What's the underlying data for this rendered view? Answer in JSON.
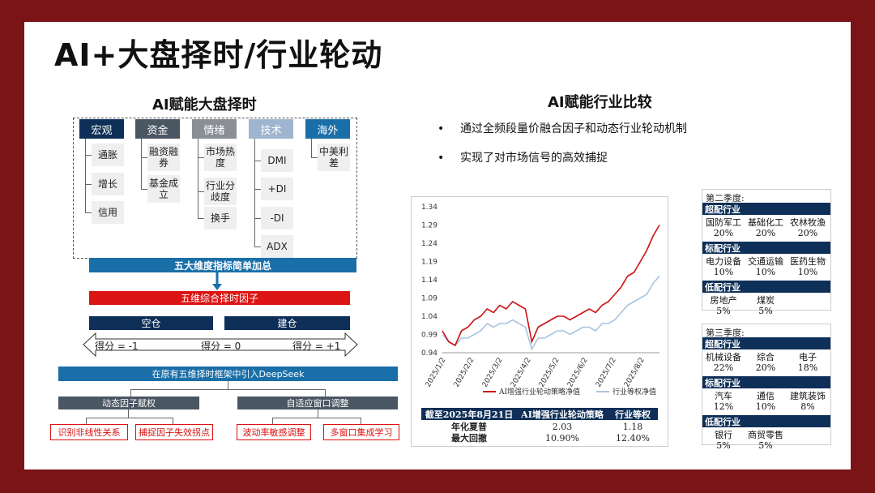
{
  "title": "AI+大盘择时/行业轮动",
  "left": {
    "subtitle": "AI赋能大盘择时",
    "dimensions": [
      {
        "name": "宏观",
        "color": "#0e2f57",
        "items": [
          "通胀",
          "增长",
          "信用"
        ]
      },
      {
        "name": "资金",
        "color": "#4b5663",
        "items": [
          "融资融券",
          "基金成立"
        ]
      },
      {
        "name": "情绪",
        "color": "#8a8f96",
        "items": [
          "市场热度",
          "行业分歧度",
          "换手"
        ]
      },
      {
        "name": "技术",
        "color": "#9fb5cf",
        "items": [
          "DMI",
          "+DI",
          "-DI",
          "ADX"
        ]
      },
      {
        "name": "海外",
        "color": "#1a6fa8",
        "items": [
          "中美利差"
        ]
      }
    ],
    "sum_bar": "五大维度指标简单加总",
    "factor_bar": "五维综合择时因子",
    "empty_label": "空仓",
    "build_label": "建仓",
    "scores": [
      "得分 = -1",
      "得分 = 0",
      "得分 = +1"
    ],
    "deepseek_bar": "在原有五维择时框架中引入DeepSeek",
    "branch_left": "动态因子赋权",
    "branch_right": "自适应窗口调整",
    "leaves": [
      "识别非线性关系",
      "捕捉因子失效拐点",
      "波动率敏感调整",
      "多窗口集成学习"
    ]
  },
  "right": {
    "subtitle": "AI赋能行业比较",
    "bullets": [
      "通过全频段量价融合因子和动态行业轮动机制",
      "实现了对市场信号的高效捕捉"
    ],
    "bullet_symbol": "•"
  },
  "chart_data": {
    "type": "line",
    "x": [
      "2025/1/2",
      "2025/1/9",
      "2025/1/16",
      "2025/1/23",
      "2025/1/30",
      "2025/2/6",
      "2025/2/13",
      "2025/2/20",
      "2025/2/27",
      "2025/3/6",
      "2025/3/13",
      "2025/3/20",
      "2025/3/27",
      "2025/4/3",
      "2025/4/8",
      "2025/4/15",
      "2025/4/22",
      "2025/4/29",
      "2025/5/6",
      "2025/5/13",
      "2025/5/20",
      "2025/5/27",
      "2025/6/3",
      "2025/6/10",
      "2025/6/17",
      "2025/6/24",
      "2025/7/1",
      "2025/7/8",
      "2025/7/15",
      "2025/7/22",
      "2025/7/29",
      "2025/8/5",
      "2025/8/12",
      "2025/8/19",
      "2025/8/21"
    ],
    "series": [
      {
        "name": "AI增强行业轮动策略净值",
        "color": "#cc1111",
        "values": [
          1.0,
          0.97,
          0.96,
          1.0,
          1.01,
          1.03,
          1.04,
          1.06,
          1.05,
          1.07,
          1.06,
          1.08,
          1.07,
          1.06,
          0.97,
          1.01,
          1.02,
          1.03,
          1.04,
          1.04,
          1.03,
          1.04,
          1.05,
          1.06,
          1.05,
          1.07,
          1.08,
          1.1,
          1.12,
          1.15,
          1.16,
          1.19,
          1.22,
          1.26,
          1.29
        ]
      },
      {
        "name": "行业等权净值",
        "color": "#a9c4df",
        "values": [
          0.99,
          0.97,
          0.96,
          0.98,
          0.98,
          0.99,
          1.0,
          1.02,
          1.01,
          1.02,
          1.02,
          1.03,
          1.02,
          1.01,
          0.95,
          0.98,
          0.98,
          0.99,
          1.0,
          1.0,
          0.99,
          1.0,
          1.01,
          1.01,
          1.0,
          1.02,
          1.02,
          1.03,
          1.05,
          1.07,
          1.08,
          1.09,
          1.1,
          1.13,
          1.15
        ]
      }
    ],
    "yticks": [
      0.94,
      0.99,
      1.04,
      1.09,
      1.14,
      1.19,
      1.24,
      1.29,
      1.34
    ],
    "xticks": [
      "2025/1/2",
      "2025/2/2",
      "2025/3/2",
      "2025/4/2",
      "2025/5/2",
      "2025/6/2",
      "2025/7/2",
      "2025/8/2"
    ],
    "ylim": [
      0.94,
      1.34
    ]
  },
  "stats_table": {
    "headers": [
      "截至2025年8月21日",
      "AI增强行业轮动策略",
      "行业等权"
    ],
    "rows": [
      [
        "年化夏普",
        "2.03",
        "1.18"
      ],
      [
        "最大回撤",
        "10.90%",
        "12.40%"
      ]
    ]
  },
  "q2": {
    "title": "第二季度:",
    "groups": [
      {
        "label": "超配行业",
        "names": [
          "国防军工",
          "基础化工",
          "农林牧渔"
        ],
        "weights": [
          "20%",
          "20%",
          "20%"
        ]
      },
      {
        "label": "标配行业",
        "names": [
          "电力设备",
          "交通运输",
          "医药生物"
        ],
        "weights": [
          "10%",
          "10%",
          "10%"
        ]
      },
      {
        "label": "低配行业",
        "names": [
          "房地产",
          "煤炭"
        ],
        "weights": [
          "5%",
          "5%"
        ]
      }
    ]
  },
  "q3": {
    "title": "第三季度:",
    "groups": [
      {
        "label": "超配行业",
        "names": [
          "机械设备",
          "综合",
          "电子"
        ],
        "weights": [
          "22%",
          "20%",
          "18%"
        ]
      },
      {
        "label": "标配行业",
        "names": [
          "汽车",
          "通信",
          "建筑装饰"
        ],
        "weights": [
          "12%",
          "10%",
          "8%"
        ]
      },
      {
        "label": "低配行业",
        "names": [
          "银行",
          "商贸零售"
        ],
        "weights": [
          "5%",
          "5%"
        ]
      }
    ]
  }
}
